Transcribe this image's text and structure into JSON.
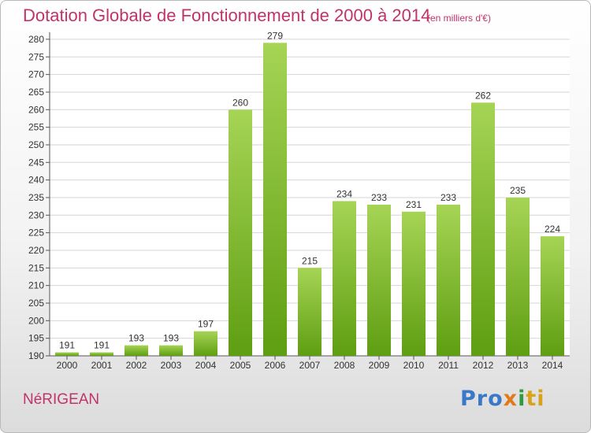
{
  "chart_data": {
    "type": "bar",
    "title": "Dotation Globale de Fonctionnement de 2000 à 2014",
    "subtitle": "(en milliers d'€)",
    "categories": [
      "2000",
      "2001",
      "2002",
      "2003",
      "2004",
      "2005",
      "2006",
      "2007",
      "2008",
      "2009",
      "2010",
      "2011",
      "2012",
      "2013",
      "2014"
    ],
    "values": [
      191,
      191,
      193,
      193,
      197,
      260,
      279,
      215,
      234,
      233,
      231,
      233,
      262,
      235,
      224
    ],
    "ylim": [
      190,
      282
    ],
    "yticks": [
      190,
      195,
      200,
      205,
      210,
      215,
      220,
      225,
      230,
      235,
      240,
      245,
      250,
      255,
      260,
      265,
      270,
      275,
      280
    ],
    "grid": true,
    "bar_color_top": "#a6d455",
    "bar_color_bottom": "#5e9e12"
  },
  "footer": {
    "commune": "NéRIGEAN",
    "logo_parts": [
      "Pro",
      "x",
      "i",
      "ti"
    ]
  },
  "colors": {
    "title": "#c0336b",
    "grid": "#d6d6d6",
    "axis": "#555555"
  }
}
